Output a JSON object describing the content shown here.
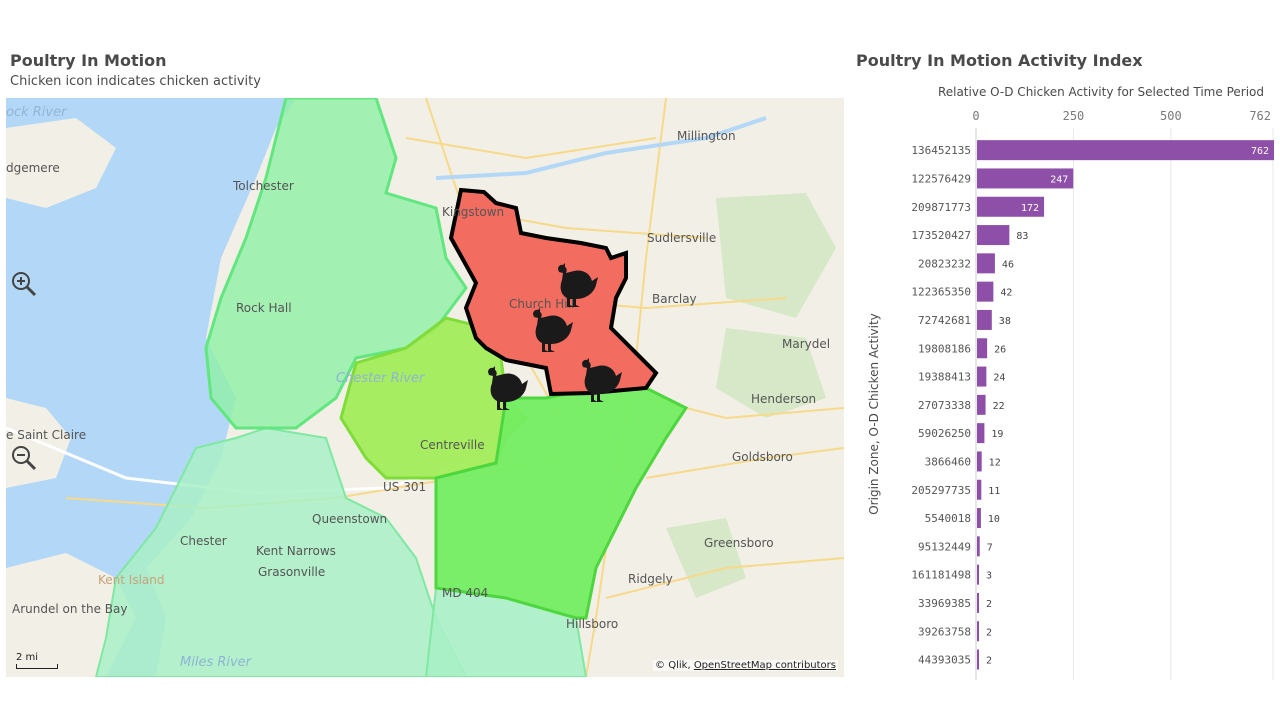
{
  "map": {
    "title": "Poultry In Motion",
    "subtitle": "Chicken icon indicates chicken activity",
    "scale_label": "2 mi",
    "attribution_prefix": "© Qlik,",
    "attribution_link": "OpenStreetMap contributors",
    "places": [
      "Millington",
      "Kingstown",
      "Sudlersville",
      "Tolchester",
      "Barclay",
      "Church Hill",
      "Rock Hall",
      "Marydel",
      "Chester River",
      "Henderson",
      "Centreville",
      "e Saint Claire",
      "Goldsboro",
      "US 301",
      "Queenstown",
      "Chester",
      "Kent Narrows",
      "Grasonville",
      "Greensboro",
      "Kent Island",
      "Ridgely",
      "Arundel on the Bay",
      "MD 404",
      "Hillsboro",
      "Miles River",
      "dgemere",
      "ock River"
    ],
    "icons": [
      "zoom-in-icon",
      "zoom-out-icon",
      "chicken-icon"
    ],
    "colors": {
      "water": "#b3d8f7",
      "land": "#f2efe6",
      "selected_zone": "#f26c5f",
      "zone_green": "#74ed62",
      "zone_yellowgreen": "#9fec52",
      "zone_mint": "#a8f0c6"
    }
  },
  "chart": {
    "title": "Poultry In Motion Activity Index",
    "bar_color": "#8e4fa8"
  },
  "chart_data": {
    "type": "bar",
    "orientation": "horizontal",
    "title": "Poultry In Motion Activity Index",
    "xlabel": "Relative O-D Chicken Activity for Selected Time Period",
    "ylabel": "Origin Zone,  O-D Chicken Activity",
    "xlim": [
      0,
      762
    ],
    "xticks": [
      "0",
      "250",
      "500",
      "762"
    ],
    "xtick_values": [
      0,
      250,
      500,
      762
    ],
    "categories": [
      "136452135",
      "122576429",
      "209871773",
      "173520427",
      "20823232",
      "122365350",
      "72742681",
      "19808186",
      "19388413",
      "27073338",
      "59026250",
      "3866460",
      "205297735",
      "5540018",
      "95132449",
      "161181498",
      "33969385",
      "39263758",
      "44393035"
    ],
    "values": [
      762,
      247,
      172,
      83,
      46,
      42,
      38,
      26,
      24,
      22,
      19,
      12,
      11,
      10,
      7,
      3,
      2,
      2,
      2
    ],
    "grid": true
  }
}
